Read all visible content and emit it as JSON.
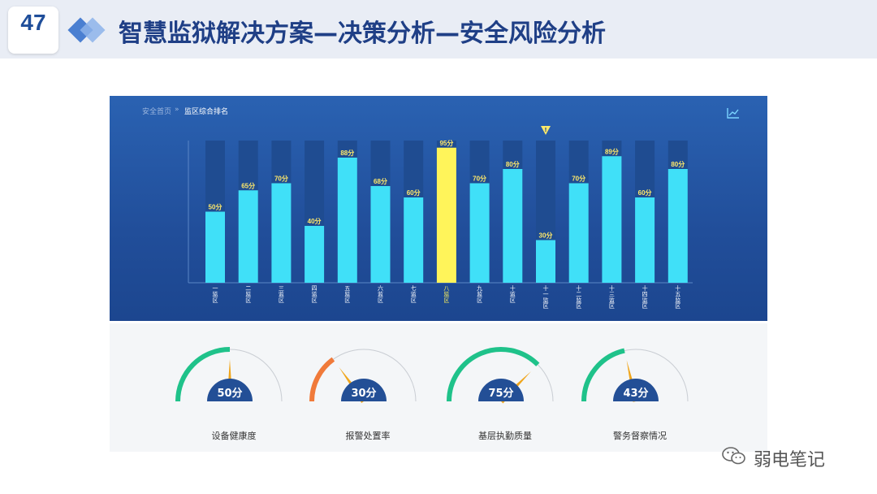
{
  "slide": {
    "number": "47",
    "title": "智慧监狱解决方案—决策分析—安全风险分析"
  },
  "breadcrumb": {
    "home": "安全首页",
    "separator": "»",
    "current": "监区综合排名"
  },
  "colors": {
    "bar": "#40e0f8",
    "bar_highlight": "#fff45a",
    "bar_track": "#1f4c91",
    "value_label": "#ffe96a",
    "gauge_green": "#1fc28a",
    "gauge_orange": "#f07a3a",
    "gauge_needle": "#f0a61c",
    "gauge_badge": "#234f96"
  },
  "chart_data": {
    "type": "bar",
    "categories": [
      "一监区",
      "二监区",
      "三监区",
      "四监区",
      "五监区",
      "六监区",
      "七监区",
      "八监区",
      "九监区",
      "十监区",
      "十一监区",
      "十二监区",
      "十三监区",
      "十四监区",
      "十五监区"
    ],
    "values": [
      50,
      65,
      70,
      40,
      88,
      68,
      60,
      95,
      70,
      80,
      30,
      70,
      89,
      60,
      80
    ],
    "value_labels": [
      "50分",
      "65分",
      "70分",
      "40分",
      "88分",
      "68分",
      "60分",
      "95分",
      "70分",
      "80分",
      "30分",
      "70分",
      "89分",
      "60分",
      "80分"
    ],
    "highlight_index": 7,
    "warning_index": 10,
    "warning_symbol": "!",
    "ylim": [
      0,
      100
    ],
    "grid": false,
    "title": "",
    "xlabel": "",
    "ylabel": ""
  },
  "gauges": [
    {
      "value": 50,
      "label": "50分",
      "name": "设备健康度",
      "color": "#1fc28a"
    },
    {
      "value": 30,
      "label": "30分",
      "name": "报警处置率",
      "color": "#f07a3a"
    },
    {
      "value": 75,
      "label": "75分",
      "name": "基层执勤质量",
      "color": "#1fc28a"
    },
    {
      "value": 43,
      "label": "43分",
      "name": "警务督察情况",
      "color": "#1fc28a"
    }
  ],
  "watermark": {
    "text": "弱电笔记",
    "icon": "wechat-icon"
  }
}
